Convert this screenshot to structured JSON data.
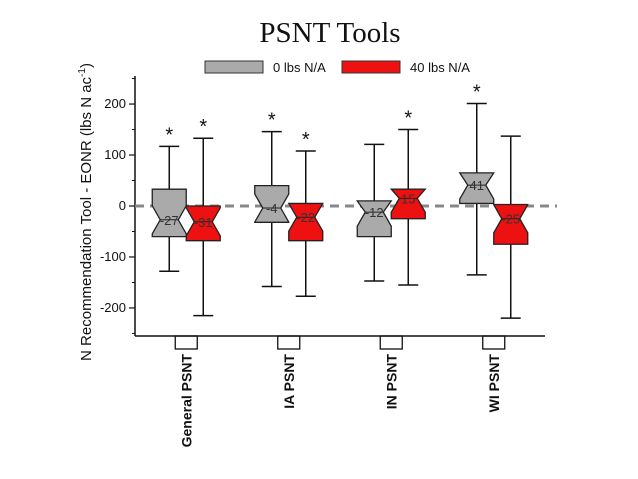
{
  "chart_data": {
    "type": "box",
    "title": "PSNT Tools",
    "ylabel": "N Recommendation Tool - EONR (lbs N ac",
    "ylabel_sup": "-1",
    "ylabel_close": ")",
    "ylim": [
      -255,
      255
    ],
    "yticks": [
      -200,
      -100,
      0,
      100,
      200
    ],
    "reference_line": 0,
    "legend_position": "top",
    "categories": [
      "General PSNT",
      "IA PSNT",
      "IN PSNT",
      "WI PSNT"
    ],
    "series": [
      {
        "name": "0 lbs N/A",
        "color": "#aaaaaa",
        "boxes": [
          {
            "min": -128,
            "q1": -60,
            "median": -27,
            "q3": 33,
            "max": 117,
            "label": "-27",
            "sig": "*"
          },
          {
            "min": -158,
            "q1": -32,
            "median": -4,
            "q3": 40,
            "max": 146,
            "label": "-4",
            "sig": "*"
          },
          {
            "min": -147,
            "q1": -60,
            "median": -12,
            "q3": 10,
            "max": 121,
            "label": "-12",
            "sig": ""
          },
          {
            "min": -135,
            "q1": 5,
            "median": 41,
            "q3": 65,
            "max": 201,
            "label": "41",
            "sig": "*"
          }
        ]
      },
      {
        "name": "40 lbs N/A",
        "color": "#ee1111",
        "boxes": [
          {
            "min": -215,
            "q1": -68,
            "median": -31,
            "q3": 0,
            "max": 133,
            "label": "-31",
            "sig": "*"
          },
          {
            "min": -177,
            "q1": -68,
            "median": -22,
            "q3": 5,
            "max": 108,
            "label": "-22",
            "sig": "*"
          },
          {
            "min": -155,
            "q1": -25,
            "median": 15,
            "q3": 33,
            "max": 150,
            "label": "15",
            "sig": "*"
          },
          {
            "min": -220,
            "q1": -75,
            "median": -25,
            "q3": 3,
            "max": 137,
            "label": "-25",
            "sig": ""
          }
        ]
      }
    ]
  }
}
